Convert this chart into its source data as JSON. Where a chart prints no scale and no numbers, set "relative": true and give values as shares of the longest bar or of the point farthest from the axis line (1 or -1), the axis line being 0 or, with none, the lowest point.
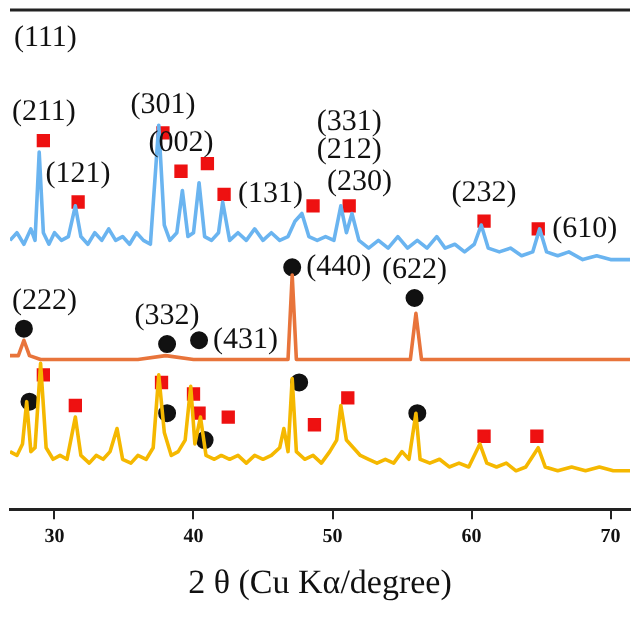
{
  "chart_data": {
    "type": "line",
    "relative": true,
    "xlabel": "2 θ (Cu Kα/degree)",
    "xlim": [
      26.8,
      71.4
    ],
    "xticks": [
      30,
      40,
      50,
      60,
      70
    ],
    "grid": false,
    "legend": false,
    "tick_labels": "x",
    "series": [
      {
        "color": "#6ab4f0",
        "marker": "none",
        "x": [
          26.8,
          27.3,
          27.8,
          28.3,
          28.6,
          28.9,
          29.2,
          29.6,
          30.0,
          30.5,
          31.0,
          31.5,
          31.9,
          32.4,
          32.9,
          33.4,
          33.9,
          34.4,
          34.9,
          35.4,
          35.9,
          36.4,
          36.9,
          37.5,
          37.9,
          38.3,
          38.8,
          39.2,
          39.6,
          40.0,
          40.4,
          40.8,
          41.3,
          41.8,
          42.1,
          42.6,
          43.2,
          43.8,
          44.4,
          45.0,
          45.6,
          46.2,
          46.8,
          47.3,
          47.8,
          48.3,
          48.9,
          49.5,
          50.1,
          50.6,
          51.0,
          51.4,
          51.9,
          52.6,
          53.3,
          54.0,
          54.7,
          55.4,
          56.1,
          56.8,
          57.5,
          58.1,
          58.8,
          59.5,
          60.2,
          60.7,
          61.2,
          62.0,
          62.8,
          63.6,
          64.4,
          64.9,
          65.4,
          66.2,
          67.0,
          68.0,
          69.0,
          70.0,
          71.4
        ],
        "values": [
          0.7,
          0.72,
          0.69,
          0.73,
          0.7,
          0.93,
          0.72,
          0.69,
          0.72,
          0.7,
          0.71,
          0.79,
          0.71,
          0.69,
          0.72,
          0.7,
          0.73,
          0.7,
          0.71,
          0.69,
          0.72,
          0.7,
          0.69,
          1.0,
          0.74,
          0.7,
          0.72,
          0.83,
          0.71,
          0.72,
          0.85,
          0.71,
          0.7,
          0.72,
          0.8,
          0.7,
          0.72,
          0.7,
          0.73,
          0.7,
          0.72,
          0.7,
          0.71,
          0.75,
          0.77,
          0.71,
          0.7,
          0.71,
          0.7,
          0.79,
          0.72,
          0.77,
          0.7,
          0.68,
          0.7,
          0.68,
          0.71,
          0.68,
          0.7,
          0.68,
          0.71,
          0.68,
          0.69,
          0.67,
          0.69,
          0.74,
          0.68,
          0.67,
          0.68,
          0.66,
          0.67,
          0.73,
          0.67,
          0.66,
          0.67,
          0.65,
          0.66,
          0.65,
          0.65
        ]
      },
      {
        "color": "#e8743b",
        "marker": "none",
        "x": [
          26.8,
          27.4,
          27.8,
          28.2,
          29.0,
          30.5,
          32.0,
          34.0,
          36.0,
          38.0,
          40.0,
          42.0,
          44.0,
          46.0,
          46.8,
          47.1,
          47.4,
          48.5,
          50.0,
          52.0,
          54.0,
          55.6,
          56.0,
          56.4,
          58.0,
          60.0,
          63.0,
          66.0,
          69.0,
          71.4
        ],
        "values": [
          0.4,
          0.4,
          0.44,
          0.4,
          0.39,
          0.39,
          0.39,
          0.39,
          0.39,
          0.4,
          0.39,
          0.39,
          0.39,
          0.39,
          0.39,
          0.61,
          0.39,
          0.39,
          0.39,
          0.39,
          0.39,
          0.39,
          0.51,
          0.39,
          0.39,
          0.39,
          0.39,
          0.39,
          0.39,
          0.39
        ]
      },
      {
        "color": "#f5b800",
        "marker": "none",
        "x": [
          26.8,
          27.3,
          27.7,
          28.0,
          28.3,
          28.6,
          29.0,
          29.4,
          29.9,
          30.4,
          30.9,
          31.5,
          31.9,
          32.5,
          33.0,
          33.5,
          34.0,
          34.5,
          34.9,
          35.5,
          36.0,
          36.6,
          37.1,
          37.5,
          37.9,
          38.4,
          38.9,
          39.4,
          39.8,
          40.1,
          40.5,
          40.9,
          41.5,
          42.0,
          42.6,
          43.2,
          43.8,
          44.4,
          45.0,
          45.6,
          46.2,
          46.5,
          46.8,
          47.1,
          47.4,
          48.0,
          48.6,
          49.2,
          49.8,
          50.3,
          50.6,
          51.0,
          51.5,
          52.0,
          52.6,
          53.2,
          53.8,
          54.4,
          55.0,
          55.5,
          56.0,
          56.3,
          57.0,
          57.7,
          58.4,
          59.1,
          59.8,
          60.6,
          61.1,
          61.8,
          62.5,
          63.2,
          63.9,
          64.8,
          65.3,
          66.2,
          67.2,
          68.2,
          69.2,
          70.2,
          71.4
        ],
        "values": [
          0.15,
          0.14,
          0.17,
          0.28,
          0.15,
          0.16,
          0.38,
          0.16,
          0.13,
          0.14,
          0.13,
          0.24,
          0.14,
          0.12,
          0.14,
          0.13,
          0.15,
          0.21,
          0.13,
          0.12,
          0.14,
          0.13,
          0.16,
          0.35,
          0.2,
          0.14,
          0.15,
          0.18,
          0.32,
          0.17,
          0.24,
          0.14,
          0.13,
          0.14,
          0.13,
          0.14,
          0.12,
          0.14,
          0.13,
          0.14,
          0.16,
          0.21,
          0.15,
          0.34,
          0.15,
          0.13,
          0.14,
          0.12,
          0.15,
          0.18,
          0.27,
          0.18,
          0.16,
          0.14,
          0.13,
          0.12,
          0.13,
          0.12,
          0.15,
          0.13,
          0.25,
          0.13,
          0.12,
          0.13,
          0.11,
          0.12,
          0.11,
          0.17,
          0.12,
          0.11,
          0.12,
          0.1,
          0.11,
          0.16,
          0.11,
          0.1,
          0.11,
          0.1,
          0.11,
          0.1,
          0.1
        ]
      },
      {
        "type": "scatter",
        "color": "#ee1111",
        "marker": "square",
        "x": [
          29.2,
          31.7,
          37.8,
          39.1,
          41.0,
          42.2,
          48.6,
          51.2,
          60.9,
          64.8,
          29.2,
          31.5,
          37.7,
          40.0,
          40.4,
          42.5,
          48.7,
          51.1,
          60.9,
          64.7
        ],
        "values": [
          0.96,
          0.8,
          0.98,
          0.88,
          0.9,
          0.82,
          0.79,
          0.79,
          0.75,
          0.73,
          0.35,
          0.27,
          0.33,
          0.3,
          0.25,
          0.24,
          0.22,
          0.29,
          0.19,
          0.19
        ]
      },
      {
        "type": "scatter",
        "color": "#111111",
        "marker": "circle",
        "x": [
          27.8,
          38.1,
          40.4,
          47.1,
          55.9,
          28.2,
          38.1,
          40.8,
          47.6,
          56.1
        ],
        "values": [
          0.47,
          0.43,
          0.44,
          0.63,
          0.55,
          0.28,
          0.25,
          0.18,
          0.33,
          0.25
        ]
      }
    ],
    "annotations": [
      "(111)",
      {
        "text": "(211)",
        "x": 29.2,
        "y": 0.96
      },
      {
        "text": "(121)",
        "x": 31.7,
        "y": 0.8
      },
      {
        "text": "(301)",
        "x": 37.8,
        "y": 0.98
      },
      {
        "text": "(002)",
        "x": 39.1,
        "y": 0.88
      },
      {
        "text": "(131)",
        "x": 42.2,
        "y": 0.82
      },
      {
        "text": "(230)",
        "x": 48.6,
        "y": 0.79
      },
      {
        "text": "(212)",
        "x": 51.2,
        "y": 0.79
      },
      {
        "text": "(331)",
        "x": 51.2,
        "y": 0.79
      },
      {
        "text": "(232)",
        "x": 60.9,
        "y": 0.75
      },
      {
        "text": "(610)",
        "x": 64.8,
        "y": 0.73
      },
      {
        "text": "(222)",
        "x": 27.8,
        "y": 0.47
      },
      {
        "text": "(332)",
        "x": 38.1,
        "y": 0.43
      },
      {
        "text": "(431)",
        "x": 40.4,
        "y": 0.44
      },
      {
        "text": "(440)",
        "x": 47.1,
        "y": 0.63
      },
      {
        "text": "(622)",
        "x": 55.9,
        "y": 0.55
      }
    ]
  }
}
